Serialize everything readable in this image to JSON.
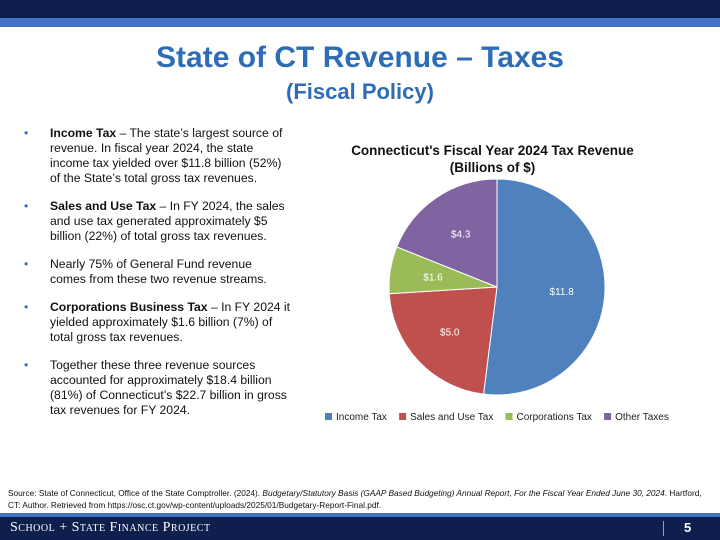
{
  "header": {
    "title": "State of CT Revenue – Taxes",
    "subtitle": "(Fiscal Policy)"
  },
  "bullets": [
    {
      "bold": "Income Tax",
      "text": " – The state’s largest source of revenue. In fiscal year 2024, the state income tax yielded over $11.8 billion (52%) of the State’s total gross tax revenues."
    },
    {
      "bold": "Sales and Use Tax",
      "text": " – In FY 2024, the sales and use tax generated approximately $5 billion (22%) of total gross tax revenues."
    },
    {
      "bold": "",
      "text": "Nearly 75% of General Fund revenue comes from these two revenue streams."
    },
    {
      "bold": "Corporations Business Tax",
      "text": " – In FY 2024 it yielded approximately $1.6 billion (7%) of total gross tax revenues."
    },
    {
      "bold": "",
      "text": "Together these three revenue sources accounted for approximately $18.4 billion (81%) of Connecticut’s $22.7 billion in gross tax revenues for FY 2024."
    }
  ],
  "chart_data": {
    "type": "pie",
    "title": "Connecticut's Fiscal Year 2024 Tax Revenue",
    "subtitle": "(Billions of $)",
    "categories": [
      "Income Tax",
      "Sales and Use Tax",
      "Corporations Tax",
      "Other Taxes"
    ],
    "values": [
      11.8,
      5.0,
      1.6,
      4.3
    ],
    "data_labels": [
      "$11.8",
      "$5.0",
      "$1.6",
      "$4.3"
    ],
    "colors": [
      "#4f81bd",
      "#c0504d",
      "#9bbb59",
      "#8064a2"
    ],
    "legend_position": "bottom"
  },
  "source": {
    "prefix": "Source: State of Connecticut, Office of the State Comptroller. (2024). ",
    "italic": "Budgetary/Statutory Basis (GAAP Based Budgeting) Annual Report, For the Fiscal Year Ended June 30, 2024",
    "suffix": ". Hartford, CT: Author. Retrieved from https://osc.ct.gov/wp-content/uploads/2025/01/Budgetary-Report-Final.pdf."
  },
  "footer": {
    "brand": "School + State Finance Project",
    "page_number": "5"
  }
}
